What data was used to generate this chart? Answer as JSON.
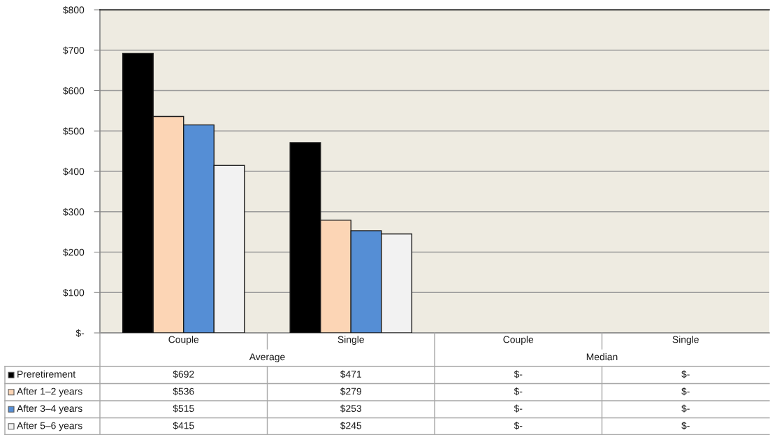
{
  "chart_data": {
    "type": "bar",
    "categories": [
      "Couple",
      "Single",
      "Couple",
      "Single"
    ],
    "annotations": [
      "Average",
      "Median"
    ],
    "series": [
      {
        "name": "Preretirement",
        "color": "#000000",
        "values": [
          692,
          471,
          0,
          0
        ],
        "value_labels": [
          "$692",
          "$471",
          "$-",
          "$-"
        ]
      },
      {
        "name": "After 1–2 years",
        "color": "#fcd5b5",
        "values": [
          536,
          279,
          0,
          0
        ],
        "value_labels": [
          "$536",
          "$279",
          "$-",
          "$-"
        ]
      },
      {
        "name": "After 3–4 years",
        "color": "#558ed5",
        "values": [
          515,
          253,
          0,
          0
        ],
        "value_labels": [
          "$515",
          "$253",
          "$-",
          "$-"
        ]
      },
      {
        "name": "After 5–6 years",
        "color": "#f2f2f2",
        "values": [
          415,
          245,
          0,
          0
        ],
        "value_labels": [
          "$415",
          "$245",
          "$-",
          "$-"
        ]
      }
    ],
    "ylim": [
      0,
      800
    ],
    "yticks": [
      {
        "value": 0,
        "label": "$-"
      },
      {
        "value": 100,
        "label": "$100"
      },
      {
        "value": 200,
        "label": "$200"
      },
      {
        "value": 300,
        "label": "$300"
      },
      {
        "value": 400,
        "label": "$400"
      },
      {
        "value": 500,
        "label": "$500"
      },
      {
        "value": 600,
        "label": "$600"
      },
      {
        "value": 700,
        "label": "$700"
      },
      {
        "value": 800,
        "label": "$800"
      }
    ],
    "grid": "y",
    "legend": "bottom left"
  }
}
